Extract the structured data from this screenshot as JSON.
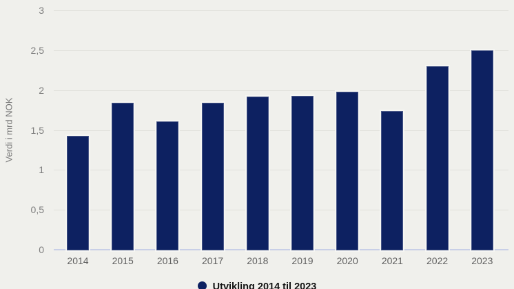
{
  "chart_data": {
    "type": "bar",
    "title": "",
    "categories": [
      "2014",
      "2015",
      "2016",
      "2017",
      "2018",
      "2019",
      "2020",
      "2021",
      "2022",
      "2023"
    ],
    "values": [
      1.43,
      1.84,
      1.61,
      1.84,
      1.92,
      1.93,
      1.98,
      1.74,
      2.3,
      2.5
    ],
    "xlabel": "",
    "ylabel": "Verdi i mrd NOK",
    "ylim": [
      0,
      3
    ],
    "yticks": [
      {
        "value": 0,
        "label": "0"
      },
      {
        "value": 0.5,
        "label": "0,5"
      },
      {
        "value": 1,
        "label": "1"
      },
      {
        "value": 1.5,
        "label": "1,5"
      },
      {
        "value": 2,
        "label": "2"
      },
      {
        "value": 2.5,
        "label": "2,5"
      },
      {
        "value": 3,
        "label": "3"
      }
    ],
    "grid": true,
    "legend_position": "bottom",
    "legend": {
      "label": "Utvikling 2014 til 2023"
    },
    "colors": {
      "bar": "#0d2161",
      "background": "#f0f0ec",
      "gridline": "#dfdfda",
      "axis_line": "#c8cfe7",
      "tick_text": "#7e7e7e",
      "legend_text": "#141414"
    }
  }
}
